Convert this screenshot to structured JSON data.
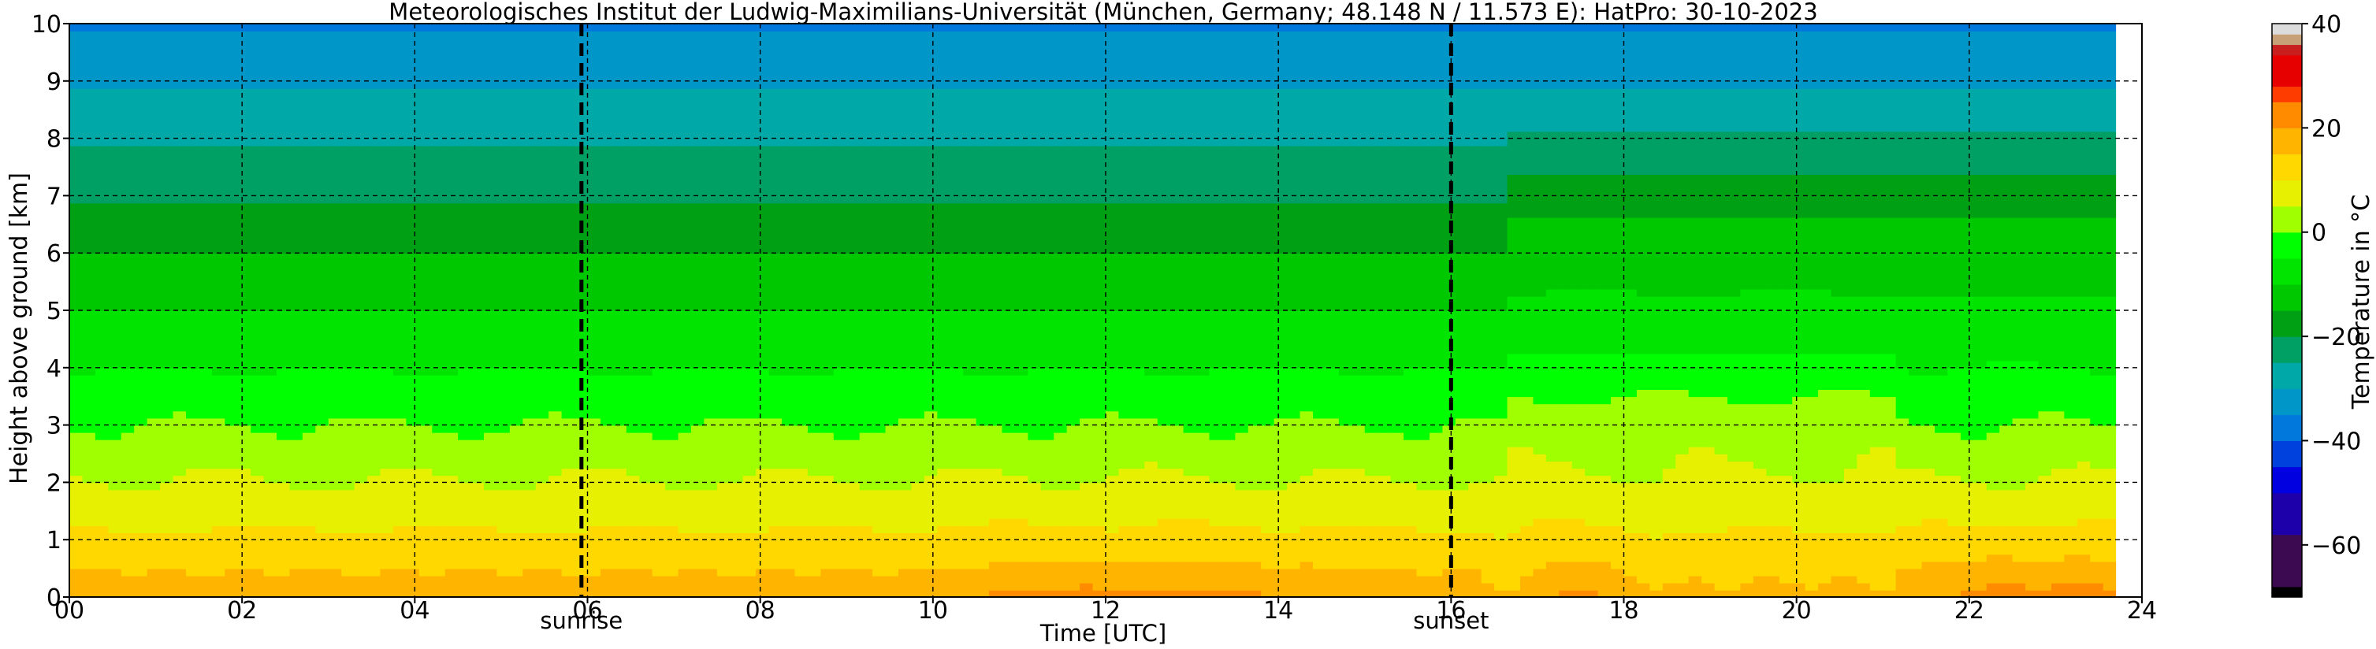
{
  "chart_data": {
    "type": "heatmap",
    "title": "Meteorologisches Institut der Ludwig-Maximilians-Universität (München, Germany; 48.148 N / 11.573 E):    HatPro: 30-10-2023",
    "xlabel": "Time [UTC]",
    "ylabel": "Height above ground [km]",
    "xlim": [
      0,
      24
    ],
    "ylim": [
      0,
      10
    ],
    "x_ticks": [
      0,
      2,
      4,
      6,
      8,
      10,
      12,
      14,
      16,
      18,
      20,
      22,
      24
    ],
    "x_tick_labels": [
      "00",
      "02",
      "04",
      "06",
      "08",
      "10",
      "12",
      "14",
      "16",
      "18",
      "20",
      "22",
      "24"
    ],
    "y_ticks": [
      0,
      1,
      2,
      3,
      4,
      5,
      6,
      7,
      8,
      9,
      10
    ],
    "y_tick_labels": [
      "0",
      "1",
      "2",
      "3",
      "4",
      "5",
      "6",
      "7",
      "8",
      "9",
      "10"
    ],
    "grid": true,
    "annotations": [
      {
        "text": "sunrise",
        "x": 5.93
      },
      {
        "text": "sunset",
        "x": 16.0
      }
    ],
    "data_end_x": 23.7,
    "colorbar": {
      "label": "Temperature in °C",
      "min": -70,
      "max": 40,
      "ticks": [
        40,
        20,
        0,
        -20,
        -40,
        -60
      ],
      "tick_labels": [
        "40",
        "20",
        "0",
        "−20",
        "−40",
        "−60"
      ],
      "colors": [
        {
          "from": -70,
          "to": -68,
          "color": "#000000"
        },
        {
          "from": -68,
          "to": -58,
          "color": "#3c0a50"
        },
        {
          "from": -58,
          "to": -50,
          "color": "#1e00aa"
        },
        {
          "from": -50,
          "to": -45,
          "color": "#0000e0"
        },
        {
          "from": -45,
          "to": -40,
          "color": "#0040dc"
        },
        {
          "from": -40,
          "to": -35,
          "color": "#0078dc"
        },
        {
          "from": -35,
          "to": -30,
          "color": "#0096c8"
        },
        {
          "from": -30,
          "to": -25,
          "color": "#00a8a8"
        },
        {
          "from": -25,
          "to": -20,
          "color": "#00a064"
        },
        {
          "from": -20,
          "to": -15,
          "color": "#00a014"
        },
        {
          "from": -15,
          "to": -10,
          "color": "#00c800"
        },
        {
          "from": -10,
          "to": -5,
          "color": "#00e400"
        },
        {
          "from": -5,
          "to": 0,
          "color": "#00ff00"
        },
        {
          "from": 0,
          "to": 5,
          "color": "#a0ff00"
        },
        {
          "from": 5,
          "to": 10,
          "color": "#e6f000"
        },
        {
          "from": 10,
          "to": 15,
          "color": "#ffd800"
        },
        {
          "from": 15,
          "to": 20,
          "color": "#ffb400"
        },
        {
          "from": 20,
          "to": 25,
          "color": "#ff8c00"
        },
        {
          "from": 25,
          "to": 28,
          "color": "#ff3c00"
        },
        {
          "from": 28,
          "to": 34,
          "color": "#e60000"
        },
        {
          "from": 34,
          "to": 36,
          "color": "#c81e1e"
        },
        {
          "from": 36,
          "to": 38,
          "color": "#c8a078"
        },
        {
          "from": 38,
          "to": 40,
          "color": "#dcdcdc"
        }
      ]
    }
  }
}
